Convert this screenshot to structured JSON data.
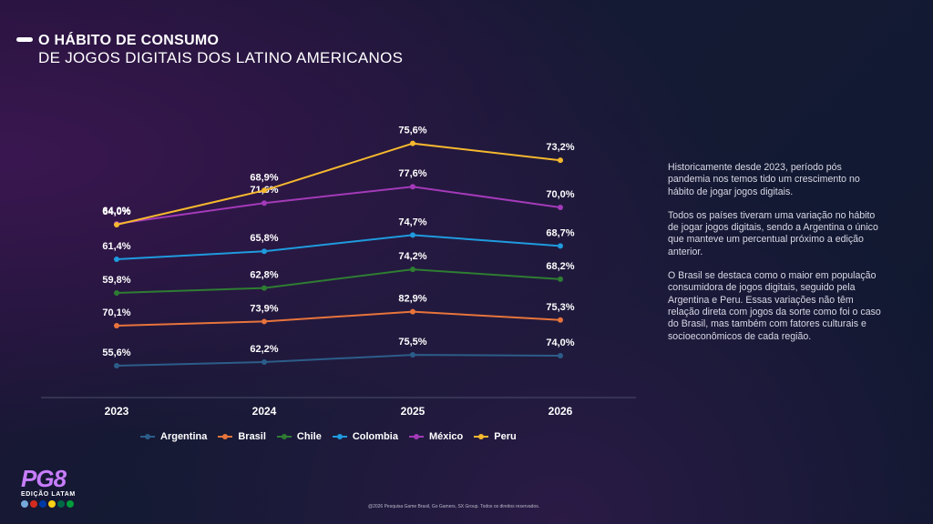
{
  "header": {
    "title": "O HÁBITO DE CONSUMO",
    "subtitle": "DE JOGOS DIGITAIS DOS LATINO AMERICANOS"
  },
  "chart_data": {
    "type": "line",
    "x": [
      "2023",
      "2024",
      "2025",
      "2026"
    ],
    "series": [
      {
        "name": "Argentina",
        "color": "#2c5d8a",
        "values": [
          55.6,
          62.2,
          75.5,
          74.0
        ],
        "labels": [
          "55,6%",
          "62,2%",
          "75,5%",
          "74,0%"
        ]
      },
      {
        "name": "Brasil",
        "color": "#e8743b",
        "values": [
          70.1,
          73.9,
          82.9,
          75.3
        ],
        "labels": [
          "70,1%",
          "73,9%",
          "82,9%",
          "75,3%"
        ]
      },
      {
        "name": "Chile",
        "color": "#2e7d32",
        "values": [
          59.8,
          62.8,
          74.2,
          68.2
        ],
        "labels": [
          "59,8%",
          "62,8%",
          "74,2%",
          "68,2%"
        ]
      },
      {
        "name": "Colombia",
        "color": "#1f9bde",
        "values": [
          61.4,
          65.8,
          74.7,
          68.7
        ],
        "labels": [
          "61,4%",
          "65,8%",
          "74,7%",
          "68,7%"
        ]
      },
      {
        "name": "México",
        "color": "#a33ab8",
        "values": [
          64.0,
          71.6,
          77.6,
          70.0
        ],
        "labels": [
          "64,0%",
          "71,6%",
          "77,6%",
          "70,0%"
        ]
      },
      {
        "name": "Peru",
        "color": "#f5b82e",
        "values": [
          64.0,
          68.9,
          75.6,
          73.2
        ],
        "labels": [
          "64,0%",
          "68,9%",
          "75,6%",
          "73,2%"
        ]
      }
    ],
    "grid": false,
    "legend_position": "bottom"
  },
  "description": {
    "paragraphs": [
      "Historicamente desde 2023, período pós pandemia nos temos tido um crescimento no hábito de jogar jogos digitais.",
      "Todos os países tiveram uma variação no hábito de jogar jogos digitais, sendo a Argentina o único que manteve um percentual próximo a edição anterior.",
      "O Brasil se destaca como o maior em população consumidora de jogos digitais, seguido pela Argentina e Peru. Essas variações não têm relação direta com jogos da sorte como foi o caso do Brasil, mas também com fatores culturais e socioeconômicos de cada região."
    ]
  },
  "logo": {
    "mark": "PG8",
    "edition": "EDIÇÃO LATAM",
    "flag_colors": [
      "#75aadb",
      "#d52b1e",
      "#0039a6",
      "#fcd116",
      "#006847",
      "#009c3b"
    ]
  },
  "footer": {
    "text": "@2026 Pesquisa Game Brasil, Go Gamers, SX Group. Todos os direitos reservados."
  }
}
